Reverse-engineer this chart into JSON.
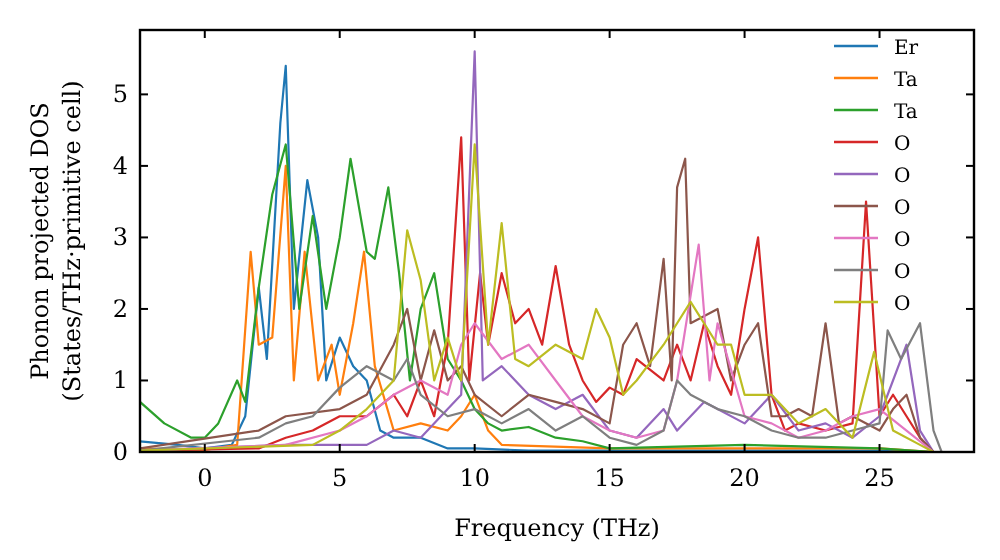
{
  "chart_data": {
    "type": "line",
    "xlabel": "Frequency (THz)",
    "ylabel": "Phonon projected DOS\n(States/THz·primitive cell)",
    "xlim": [
      -2.4,
      28.5
    ],
    "ylim": [
      0,
      5.9
    ],
    "xticks": [
      0,
      5,
      10,
      15,
      20,
      25
    ],
    "yticks": [
      0,
      1,
      2,
      3,
      4,
      5
    ],
    "grid": false,
    "legend": "top right",
    "marker": "none",
    "line_style": "solid",
    "series": [
      {
        "name": "Er",
        "color": "#1f77b4",
        "x": [
          -2.4,
          -1,
          0,
          1,
          1.5,
          2,
          2.3,
          2.8,
          3,
          3.3,
          3.8,
          4.2,
          4.5,
          5,
          5.5,
          6,
          6.5,
          7,
          8,
          9,
          10,
          12,
          15,
          20,
          25,
          27
        ],
        "values": [
          0.15,
          0.1,
          0.05,
          0.1,
          0.5,
          2.3,
          1.3,
          4.6,
          5.4,
          2.0,
          3.8,
          3.0,
          1.0,
          1.6,
          1.2,
          1.0,
          0.3,
          0.2,
          0.2,
          0.05,
          0.05,
          0.02,
          0.02,
          0.02,
          0.02,
          0
        ]
      },
      {
        "name": "Ta",
        "color": "#ff7f0e",
        "x": [
          -2.4,
          0,
          1.2,
          1.7,
          2,
          2.5,
          3,
          3.3,
          3.7,
          4.2,
          4.7,
          5,
          5.5,
          5.9,
          6.3,
          7,
          8,
          9,
          9.5,
          10,
          10.5,
          11,
          15,
          20,
          25,
          27
        ],
        "values": [
          0.05,
          0.03,
          0.1,
          2.8,
          1.5,
          1.6,
          4.0,
          1.0,
          2.8,
          1.0,
          1.5,
          0.8,
          1.8,
          2.8,
          1.2,
          0.3,
          0.4,
          0.3,
          0.5,
          0.8,
          0.3,
          0.1,
          0.05,
          0.05,
          0.05,
          0
        ]
      },
      {
        "name": "Ta",
        "color": "#2ca02c",
        "x": [
          -2.4,
          -1.5,
          -0.5,
          0,
          0.5,
          1.2,
          1.5,
          2,
          2.5,
          3,
          3.5,
          4,
          4.5,
          5,
          5.4,
          6,
          6.3,
          6.8,
          7.2,
          7.6,
          8,
          8.5,
          9,
          9.5,
          10,
          10.5,
          11,
          12,
          13,
          14,
          15,
          20,
          25,
          27
        ],
        "values": [
          0.7,
          0.4,
          0.2,
          0.2,
          0.4,
          1.0,
          0.7,
          2.3,
          3.6,
          4.3,
          2.0,
          3.3,
          2.0,
          3.0,
          4.1,
          2.8,
          2.7,
          3.7,
          2.5,
          1.0,
          2.0,
          2.5,
          1.3,
          1.0,
          0.6,
          0.4,
          0.3,
          0.35,
          0.2,
          0.15,
          0.05,
          0.1,
          0.05,
          0
        ]
      },
      {
        "name": "O",
        "color": "#d62728",
        "x": [
          -2.4,
          2,
          3,
          4,
          5,
          6,
          7,
          7.5,
          8,
          8.5,
          9,
          9.5,
          9.8,
          10.2,
          10.5,
          11,
          11.5,
          12,
          12.5,
          13,
          13.5,
          14,
          14.5,
          15,
          15.5,
          16,
          17,
          17.5,
          18,
          18.5,
          19,
          19.5,
          20,
          20.5,
          21,
          21.5,
          22,
          23,
          24,
          24.5,
          25,
          25.5,
          26,
          26.5,
          27
        ],
        "values": [
          0.02,
          0.05,
          0.2,
          0.3,
          0.5,
          0.5,
          0.8,
          0.5,
          1.0,
          0.5,
          1.5,
          4.4,
          1.0,
          2.5,
          1.5,
          2.5,
          1.8,
          2.0,
          1.5,
          2.6,
          1.5,
          1.0,
          0.7,
          0.9,
          0.8,
          1.3,
          1.0,
          1.5,
          1.0,
          1.8,
          1.2,
          0.8,
          2.0,
          3.0,
          0.8,
          0.3,
          0.4,
          0.3,
          0.4,
          3.5,
          0.5,
          0.8,
          0.5,
          0.2,
          0
        ]
      },
      {
        "name": "O",
        "color": "#9467bd",
        "x": [
          -2.4,
          3,
          6,
          7,
          8,
          9,
          9.5,
          10,
          10.3,
          11,
          12,
          13,
          14,
          15,
          16,
          17,
          17.5,
          18.5,
          19,
          20,
          21,
          22,
          23,
          24,
          25,
          26,
          26.5,
          27
        ],
        "values": [
          0.02,
          0.1,
          0.1,
          0.3,
          0.2,
          0.6,
          0.8,
          5.6,
          1.0,
          1.2,
          0.8,
          0.6,
          0.8,
          0.3,
          0.2,
          0.6,
          0.3,
          0.7,
          0.6,
          0.4,
          0.8,
          0.3,
          0.4,
          0.2,
          0.5,
          1.5,
          0.3,
          0
        ]
      },
      {
        "name": "O",
        "color": "#8c564b",
        "x": [
          -2.4,
          2,
          3,
          5,
          6,
          7,
          7.5,
          8,
          8.5,
          9,
          9.5,
          10,
          11,
          12,
          13,
          14,
          15,
          15.5,
          16,
          16.5,
          17,
          17.3,
          17.5,
          17.8,
          18,
          19,
          19.5,
          20,
          20.5,
          21,
          21.5,
          22,
          22.5,
          23,
          23.5,
          24,
          25,
          25.5,
          26,
          26.5,
          27
        ],
        "values": [
          0.05,
          0.3,
          0.5,
          0.6,
          0.8,
          1.5,
          2.0,
          1.0,
          1.7,
          1.0,
          1.2,
          0.8,
          0.5,
          0.8,
          0.7,
          0.6,
          0.4,
          1.5,
          1.8,
          1.2,
          2.7,
          1.0,
          3.7,
          4.1,
          1.8,
          2.0,
          1.0,
          1.5,
          1.8,
          0.5,
          0.5,
          0.6,
          0.5,
          1.8,
          0.4,
          0.5,
          0.3,
          0.6,
          0.8,
          0.2,
          0
        ]
      },
      {
        "name": "O",
        "color": "#e377c2",
        "x": [
          -2.4,
          3,
          5,
          6,
          7,
          8,
          9,
          9.5,
          10,
          11,
          12,
          13,
          14,
          15,
          16,
          17,
          17.5,
          18.3,
          18.7,
          19,
          20,
          21,
          22,
          23,
          24,
          25,
          26,
          27
        ],
        "values": [
          0.02,
          0.1,
          0.3,
          0.5,
          0.8,
          1.0,
          0.8,
          1.5,
          1.8,
          1.3,
          1.5,
          1.0,
          0.5,
          0.3,
          0.2,
          0.3,
          1.0,
          2.9,
          1.0,
          1.8,
          0.5,
          0.4,
          0.2,
          0.3,
          0.5,
          0.6,
          0.3,
          0
        ]
      },
      {
        "name": "O",
        "color": "#7f7f7f",
        "x": [
          -2.4,
          2,
          3,
          4,
          5,
          6,
          7,
          7.5,
          8,
          9,
          10,
          11,
          12,
          13,
          14,
          15,
          16,
          17,
          17.5,
          18,
          19,
          20,
          21,
          22,
          23,
          24,
          25,
          25.3,
          25.8,
          26.5,
          27,
          27.3
        ],
        "values": [
          0.02,
          0.2,
          0.4,
          0.5,
          0.9,
          1.2,
          1.0,
          1.3,
          0.8,
          0.5,
          0.6,
          0.4,
          0.6,
          0.3,
          0.5,
          0.2,
          0.1,
          0.3,
          1.0,
          0.8,
          0.6,
          0.5,
          0.3,
          0.2,
          0.2,
          0.3,
          0.4,
          1.7,
          1.3,
          1.8,
          0.3,
          0
        ]
      },
      {
        "name": "O",
        "color": "#bcbd22",
        "x": [
          -2.4,
          4,
          5,
          6,
          7,
          7.5,
          8,
          8.5,
          9,
          9.5,
          10,
          10.5,
          11,
          11.5,
          12,
          13,
          14,
          14.5,
          15,
          15.5,
          16,
          17,
          17.5,
          18,
          19,
          19.5,
          20,
          21,
          22,
          23,
          24,
          24.8,
          25.5,
          26.5,
          27
        ],
        "values": [
          0.02,
          0.1,
          0.3,
          0.6,
          1.0,
          3.1,
          2.4,
          1.0,
          1.6,
          1.0,
          4.3,
          1.5,
          3.2,
          1.3,
          1.2,
          1.5,
          1.3,
          2.0,
          1.6,
          0.8,
          1.0,
          1.5,
          1.8,
          2.1,
          1.5,
          1.5,
          0.8,
          0.8,
          0.4,
          0.6,
          0.2,
          1.4,
          0.3,
          0.1,
          0
        ]
      }
    ]
  }
}
